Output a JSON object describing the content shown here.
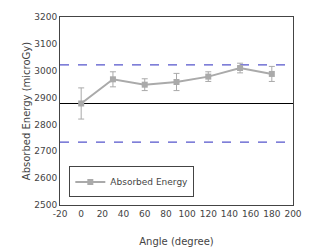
{
  "chart_data": {
    "type": "line",
    "x": [
      0,
      30,
      60,
      90,
      120,
      150,
      180
    ],
    "series": [
      {
        "name": "Absorbed Energy",
        "color": "#aaaaaa",
        "marker": "square",
        "values": [
          2878,
          2968,
          2948,
          2958,
          2978,
          3010,
          2988
        ],
        "yerr": [
          58,
          28,
          22,
          32,
          18,
          18,
          28
        ]
      }
    ],
    "hlines": [
      {
        "y": 2878,
        "color": "black",
        "line_style": "solid"
      },
      {
        "y": 3022,
        "color": "#5555cc",
        "line_style": "dashed"
      },
      {
        "y": 2734,
        "color": "#5555cc",
        "line_style": "dashed"
      }
    ],
    "xlabel": "Angle (degree)",
    "ylabel": "Absorbed Energy (microGy)",
    "xlim": [
      -20,
      200
    ],
    "ylim": [
      2500,
      3200
    ],
    "xticks": [
      -20,
      0,
      20,
      40,
      60,
      80,
      100,
      120,
      140,
      160,
      180,
      200
    ],
    "yticks": [
      2500,
      2600,
      2700,
      2800,
      2900,
      3000,
      3100,
      3200
    ],
    "grid": false,
    "legend": "lower left"
  }
}
